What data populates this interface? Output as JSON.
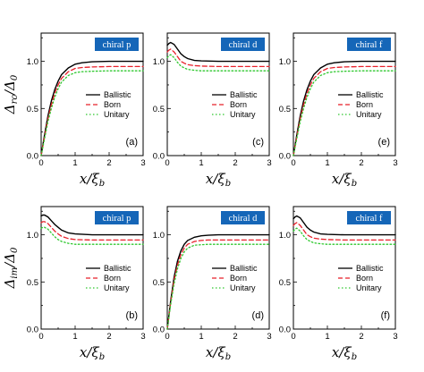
{
  "x_axis_label": {
    "main": "x/ξ",
    "sub": "b"
  },
  "y_axis_labels": [
    {
      "main": "Δ",
      "sub": "rc",
      "tail": "/Δ",
      "tail_sub": "0"
    },
    {
      "main": "Δ",
      "sub": "im",
      "tail": "/Δ",
      "tail_sub": "0"
    }
  ],
  "legend": [
    {
      "label": "Ballistic",
      "color": "#000000",
      "dash": "solid"
    },
    {
      "label": "Born",
      "color": "#e8202a",
      "dash": "dashed"
    },
    {
      "label": "Unitary",
      "color": "#2ec82e",
      "dash": "dotted"
    }
  ],
  "tag_color": "#1566b8",
  "chart_data": [
    {
      "type": "line",
      "panel_label": "(a)",
      "tag": "chiral p",
      "xlim": [
        0,
        3
      ],
      "ylim": [
        0,
        1.3
      ],
      "xticks": [
        "0",
        "1",
        "2",
        "3"
      ],
      "yticks": [
        "0.0",
        "0.5",
        "1.0"
      ],
      "x": [
        0,
        0.1,
        0.2,
        0.3,
        0.4,
        0.5,
        0.6,
        0.8,
        1.0,
        1.2,
        1.5,
        2.0,
        2.5,
        3.0
      ],
      "series": [
        {
          "name": "Ballistic",
          "values": [
            0,
            0.22,
            0.42,
            0.58,
            0.7,
            0.79,
            0.86,
            0.93,
            0.97,
            0.985,
            0.995,
            1.0,
            1.0,
            1.0
          ]
        },
        {
          "name": "Born",
          "values": [
            0,
            0.2,
            0.39,
            0.54,
            0.66,
            0.75,
            0.82,
            0.89,
            0.925,
            0.935,
            0.94,
            0.945,
            0.945,
            0.945
          ]
        },
        {
          "name": "Unitary",
          "values": [
            0,
            0.18,
            0.36,
            0.5,
            0.62,
            0.71,
            0.78,
            0.85,
            0.88,
            0.89,
            0.895,
            0.9,
            0.9,
            0.9
          ]
        }
      ]
    },
    {
      "type": "line",
      "panel_label": "(c)",
      "tag": "chiral d",
      "xlim": [
        0,
        3
      ],
      "ylim": [
        0,
        1.3
      ],
      "xticks": [
        "0",
        "1",
        "2",
        "3"
      ],
      "yticks": [
        "0.0",
        "0.5",
        "1.0"
      ],
      "x": [
        0,
        0.05,
        0.1,
        0.2,
        0.3,
        0.4,
        0.5,
        0.6,
        0.8,
        1.0,
        1.5,
        2.0,
        2.5,
        3.0
      ],
      "series": [
        {
          "name": "Ballistic",
          "values": [
            1.17,
            1.19,
            1.2,
            1.18,
            1.13,
            1.08,
            1.05,
            1.03,
            1.01,
            1.005,
            1.0,
            1.0,
            1.0,
            1.0
          ]
        },
        {
          "name": "Born",
          "values": [
            1.1,
            1.12,
            1.13,
            1.1,
            1.05,
            1.0,
            0.98,
            0.965,
            0.955,
            0.95,
            0.945,
            0.945,
            0.945,
            0.945
          ]
        },
        {
          "name": "Unitary",
          "values": [
            1.04,
            1.06,
            1.07,
            1.04,
            0.99,
            0.95,
            0.93,
            0.915,
            0.905,
            0.9,
            0.9,
            0.9,
            0.9,
            0.9
          ]
        }
      ]
    },
    {
      "type": "line",
      "panel_label": "(e)",
      "tag": "chiral f",
      "xlim": [
        0,
        3
      ],
      "ylim": [
        0,
        1.3
      ],
      "xticks": [
        "0",
        "1",
        "2",
        "3"
      ],
      "yticks": [
        "0.0",
        "0.5",
        "1.0"
      ],
      "x": [
        0,
        0.1,
        0.2,
        0.3,
        0.4,
        0.5,
        0.6,
        0.8,
        1.0,
        1.2,
        1.5,
        2.0,
        2.5,
        3.0
      ],
      "series": [
        {
          "name": "Ballistic",
          "values": [
            0,
            0.22,
            0.42,
            0.58,
            0.7,
            0.79,
            0.86,
            0.93,
            0.97,
            0.985,
            0.995,
            1.0,
            1.0,
            1.0
          ]
        },
        {
          "name": "Born",
          "values": [
            0,
            0.2,
            0.39,
            0.54,
            0.66,
            0.75,
            0.82,
            0.89,
            0.925,
            0.935,
            0.94,
            0.945,
            0.945,
            0.945
          ]
        },
        {
          "name": "Unitary",
          "values": [
            0,
            0.18,
            0.36,
            0.5,
            0.62,
            0.71,
            0.78,
            0.85,
            0.88,
            0.89,
            0.895,
            0.9,
            0.9,
            0.9
          ]
        }
      ]
    },
    {
      "type": "line",
      "panel_label": "(b)",
      "tag": "chiral p",
      "xlim": [
        0,
        3
      ],
      "ylim": [
        0,
        1.3
      ],
      "xticks": [
        "0",
        "1",
        "2",
        "3"
      ],
      "yticks": [
        "0.0",
        "0.5",
        "1.0"
      ],
      "x": [
        0,
        0.05,
        0.1,
        0.2,
        0.3,
        0.4,
        0.5,
        0.6,
        0.8,
        1.0,
        1.5,
        2.0,
        2.5,
        3.0
      ],
      "series": [
        {
          "name": "Ballistic",
          "values": [
            1.2,
            1.21,
            1.21,
            1.19,
            1.15,
            1.11,
            1.08,
            1.05,
            1.02,
            1.01,
            1.0,
            1.0,
            1.0,
            1.0
          ]
        },
        {
          "name": "Born",
          "values": [
            1.13,
            1.14,
            1.14,
            1.12,
            1.08,
            1.04,
            1.01,
            0.985,
            0.96,
            0.95,
            0.945,
            0.945,
            0.945,
            0.945
          ]
        },
        {
          "name": "Unitary",
          "values": [
            1.07,
            1.08,
            1.08,
            1.06,
            1.02,
            0.98,
            0.95,
            0.93,
            0.91,
            0.9,
            0.9,
            0.9,
            0.9,
            0.9
          ]
        }
      ]
    },
    {
      "type": "line",
      "panel_label": "(d)",
      "tag": "chiral d",
      "xlim": [
        0,
        3
      ],
      "ylim": [
        0,
        1.3
      ],
      "xticks": [
        "0",
        "1",
        "2",
        "3"
      ],
      "yticks": [
        "0.0",
        "0.5",
        "1.0"
      ],
      "x": [
        0,
        0.1,
        0.2,
        0.3,
        0.4,
        0.5,
        0.6,
        0.8,
        1.0,
        1.2,
        1.5,
        2.0,
        2.5,
        3.0
      ],
      "series": [
        {
          "name": "Ballistic",
          "values": [
            0,
            0.3,
            0.55,
            0.72,
            0.83,
            0.9,
            0.94,
            0.975,
            0.99,
            0.995,
            1.0,
            1.0,
            1.0,
            1.0
          ]
        },
        {
          "name": "Born",
          "values": [
            0,
            0.28,
            0.52,
            0.68,
            0.79,
            0.86,
            0.9,
            0.93,
            0.94,
            0.945,
            0.945,
            0.945,
            0.945,
            0.945
          ]
        },
        {
          "name": "Unitary",
          "values": [
            0,
            0.26,
            0.48,
            0.64,
            0.75,
            0.82,
            0.86,
            0.89,
            0.895,
            0.9,
            0.9,
            0.9,
            0.9,
            0.9
          ]
        }
      ]
    },
    {
      "type": "line",
      "panel_label": "(f)",
      "tag": "chiral f",
      "xlim": [
        0,
        3
      ],
      "ylim": [
        0,
        1.3
      ],
      "xticks": [
        "0",
        "1",
        "2",
        "3"
      ],
      "yticks": [
        "0.0",
        "0.5",
        "1.0"
      ],
      "x": [
        0,
        0.05,
        0.1,
        0.2,
        0.3,
        0.4,
        0.5,
        0.6,
        0.8,
        1.0,
        1.5,
        2.0,
        2.5,
        3.0
      ],
      "series": [
        {
          "name": "Ballistic",
          "values": [
            1.17,
            1.19,
            1.2,
            1.18,
            1.13,
            1.08,
            1.05,
            1.03,
            1.01,
            1.005,
            1.0,
            1.0,
            1.0,
            1.0
          ]
        },
        {
          "name": "Born",
          "values": [
            1.1,
            1.12,
            1.13,
            1.1,
            1.05,
            1.0,
            0.98,
            0.965,
            0.955,
            0.95,
            0.945,
            0.945,
            0.945,
            0.945
          ]
        },
        {
          "name": "Unitary",
          "values": [
            1.04,
            1.06,
            1.07,
            1.04,
            0.99,
            0.95,
            0.93,
            0.915,
            0.905,
            0.9,
            0.9,
            0.9,
            0.9,
            0.9
          ]
        }
      ]
    }
  ]
}
